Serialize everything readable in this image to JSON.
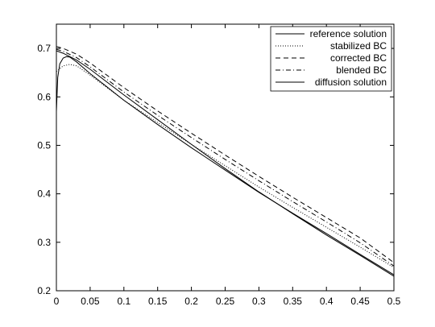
{
  "chart_data": {
    "type": "line",
    "xlim": [
      0,
      0.5
    ],
    "ylim": [
      0.2,
      0.75
    ],
    "x_ticks": [
      0,
      0.05,
      0.1,
      0.15,
      0.2,
      0.25,
      0.3,
      0.35,
      0.4,
      0.45,
      0.5
    ],
    "x_tick_labels": [
      "0",
      "0.05",
      "0.1",
      "0.15",
      "0.2",
      "0.25",
      "0.3",
      "0.35",
      "0.4",
      "0.45",
      "0.5"
    ],
    "y_ticks": [
      0.2,
      0.3,
      0.4,
      0.5,
      0.6,
      0.7
    ],
    "y_tick_labels": [
      "0.2",
      "0.3",
      "0.4",
      "0.5",
      "0.6",
      "0.7"
    ],
    "grid": false,
    "legend_position": "top-right",
    "series": [
      {
        "name": "reference solution",
        "style": "solid",
        "points": [
          [
            0,
            0.57
          ],
          [
            0.002,
            0.64
          ],
          [
            0.005,
            0.668
          ],
          [
            0.01,
            0.68
          ],
          [
            0.015,
            0.683
          ],
          [
            0.02,
            0.682
          ],
          [
            0.03,
            0.672
          ],
          [
            0.05,
            0.648
          ],
          [
            0.1,
            0.593
          ],
          [
            0.15,
            0.543
          ],
          [
            0.2,
            0.495
          ],
          [
            0.25,
            0.449
          ],
          [
            0.3,
            0.403
          ],
          [
            0.35,
            0.36
          ],
          [
            0.4,
            0.318
          ],
          [
            0.45,
            0.275
          ],
          [
            0.5,
            0.233
          ]
        ]
      },
      {
        "name": "stabilized BC",
        "style": "dotted",
        "points": [
          [
            0,
            0.652
          ],
          [
            0.01,
            0.664
          ],
          [
            0.02,
            0.667
          ],
          [
            0.03,
            0.664
          ],
          [
            0.05,
            0.645
          ],
          [
            0.1,
            0.593
          ],
          [
            0.15,
            0.547
          ],
          [
            0.2,
            0.502
          ],
          [
            0.25,
            0.458
          ],
          [
            0.3,
            0.414
          ],
          [
            0.35,
            0.372
          ],
          [
            0.4,
            0.331
          ],
          [
            0.45,
            0.29
          ],
          [
            0.5,
            0.248
          ]
        ]
      },
      {
        "name": "corrected BC",
        "style": "dashed",
        "points": [
          [
            0,
            0.704
          ],
          [
            0.01,
            0.7
          ],
          [
            0.03,
            0.688
          ],
          [
            0.05,
            0.67
          ],
          [
            0.1,
            0.619
          ],
          [
            0.15,
            0.571
          ],
          [
            0.2,
            0.525
          ],
          [
            0.25,
            0.48
          ],
          [
            0.3,
            0.436
          ],
          [
            0.35,
            0.393
          ],
          [
            0.4,
            0.351
          ],
          [
            0.45,
            0.309
          ],
          [
            0.5,
            0.258
          ]
        ]
      },
      {
        "name": "blended BC",
        "style": "dashdot",
        "points": [
          [
            0,
            0.698
          ],
          [
            0.01,
            0.694
          ],
          [
            0.03,
            0.681
          ],
          [
            0.05,
            0.662
          ],
          [
            0.1,
            0.61
          ],
          [
            0.15,
            0.562
          ],
          [
            0.2,
            0.516
          ],
          [
            0.25,
            0.471
          ],
          [
            0.3,
            0.427
          ],
          [
            0.35,
            0.384
          ],
          [
            0.4,
            0.342
          ],
          [
            0.45,
            0.299
          ],
          [
            0.5,
            0.251
          ]
        ]
      },
      {
        "name": "diffusion solution",
        "style": "solid",
        "points": [
          [
            0,
            0.695
          ],
          [
            0.01,
            0.69
          ],
          [
            0.03,
            0.676
          ],
          [
            0.05,
            0.657
          ],
          [
            0.1,
            0.604
          ],
          [
            0.15,
            0.553
          ],
          [
            0.2,
            0.502
          ],
          [
            0.25,
            0.452
          ],
          [
            0.3,
            0.404
          ],
          [
            0.35,
            0.359
          ],
          [
            0.4,
            0.315
          ],
          [
            0.45,
            0.273
          ],
          [
            0.5,
            0.23
          ]
        ]
      }
    ]
  }
}
